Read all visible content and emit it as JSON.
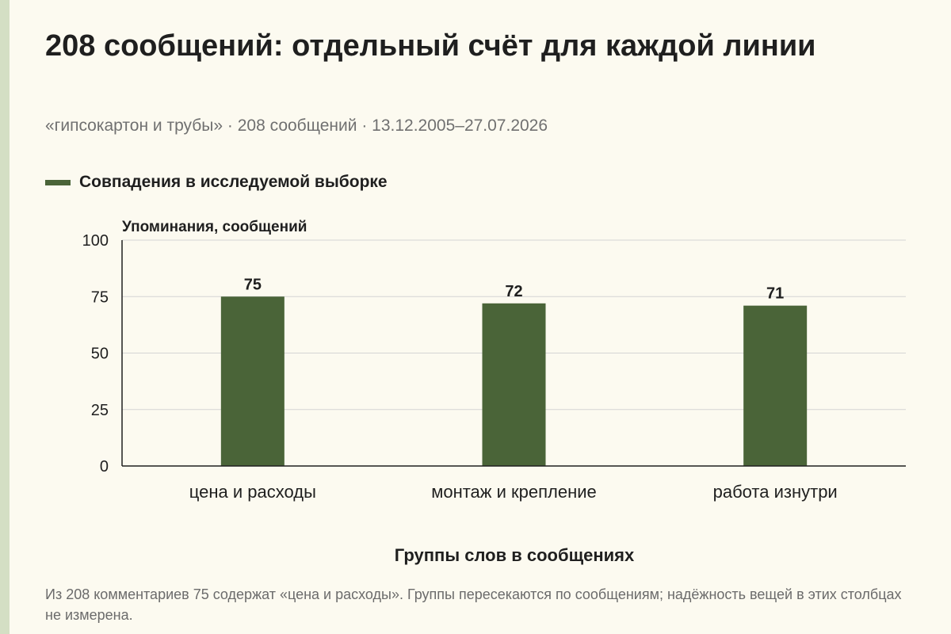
{
  "header": {
    "title": "208 сообщений: отдельный счёт для каждой линии",
    "subtitle": "«гипсокартон и трубы» · 208 сообщений · 13.12.2005–27.07.2026"
  },
  "legend": {
    "label": "Совпадения в исследуемой выборке",
    "color": "#4a6438"
  },
  "chart_data": {
    "type": "bar",
    "categories": [
      "цена и расходы",
      "монтаж и крепление",
      "работа изнутри"
    ],
    "series": [
      {
        "name": "Совпадения в исследуемой выборке",
        "values": [
          75,
          72,
          71
        ],
        "color": "#4a6438"
      }
    ],
    "xlabel": "Группы слов в сообщениях",
    "ylabel": "Упоминания, сообщений",
    "ylim": [
      0,
      100
    ],
    "yticks": [
      0,
      25,
      50,
      75,
      100
    ],
    "grid": true,
    "data_labels": true,
    "legend_position": "top-left"
  },
  "footer": {
    "note": "Из 208 комментариев 75 содержат «цена и расходы». Группы пересекаются по сообщениям; надёжность вещей в этих столбцах не измерена."
  }
}
